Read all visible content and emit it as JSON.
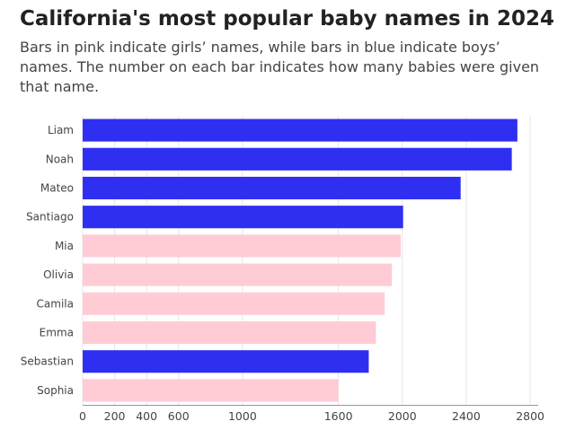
{
  "title": "California's most popular baby names in 2024",
  "subtitle": "Bars in pink indicate girls’ names, while bars in blue indicate boys’ names. The number on each bar indicates how many babies were given that name.",
  "colors": {
    "boy": "#2f2ff2",
    "girl": "#ffccd5",
    "grid": "#e6e6e6",
    "axis": "#999999"
  },
  "chart_data": {
    "type": "bar",
    "orientation": "horizontal",
    "title": "California's most popular baby names in 2024",
    "categories": [
      "Liam",
      "Noah",
      "Mateo",
      "Santiago",
      "Mia",
      "Olivia",
      "Camila",
      "Emma",
      "Sebastian",
      "Sophia"
    ],
    "values": [
      2720,
      2685,
      2365,
      2005,
      1990,
      1935,
      1890,
      1835,
      1790,
      1600
    ],
    "gender": [
      "boy",
      "boy",
      "boy",
      "boy",
      "girl",
      "girl",
      "girl",
      "girl",
      "boy",
      "girl"
    ],
    "xlim": [
      0,
      2850
    ],
    "xticks": [
      0,
      200,
      400,
      600,
      1000,
      1600,
      2000,
      2400,
      2800
    ],
    "grid": true
  }
}
